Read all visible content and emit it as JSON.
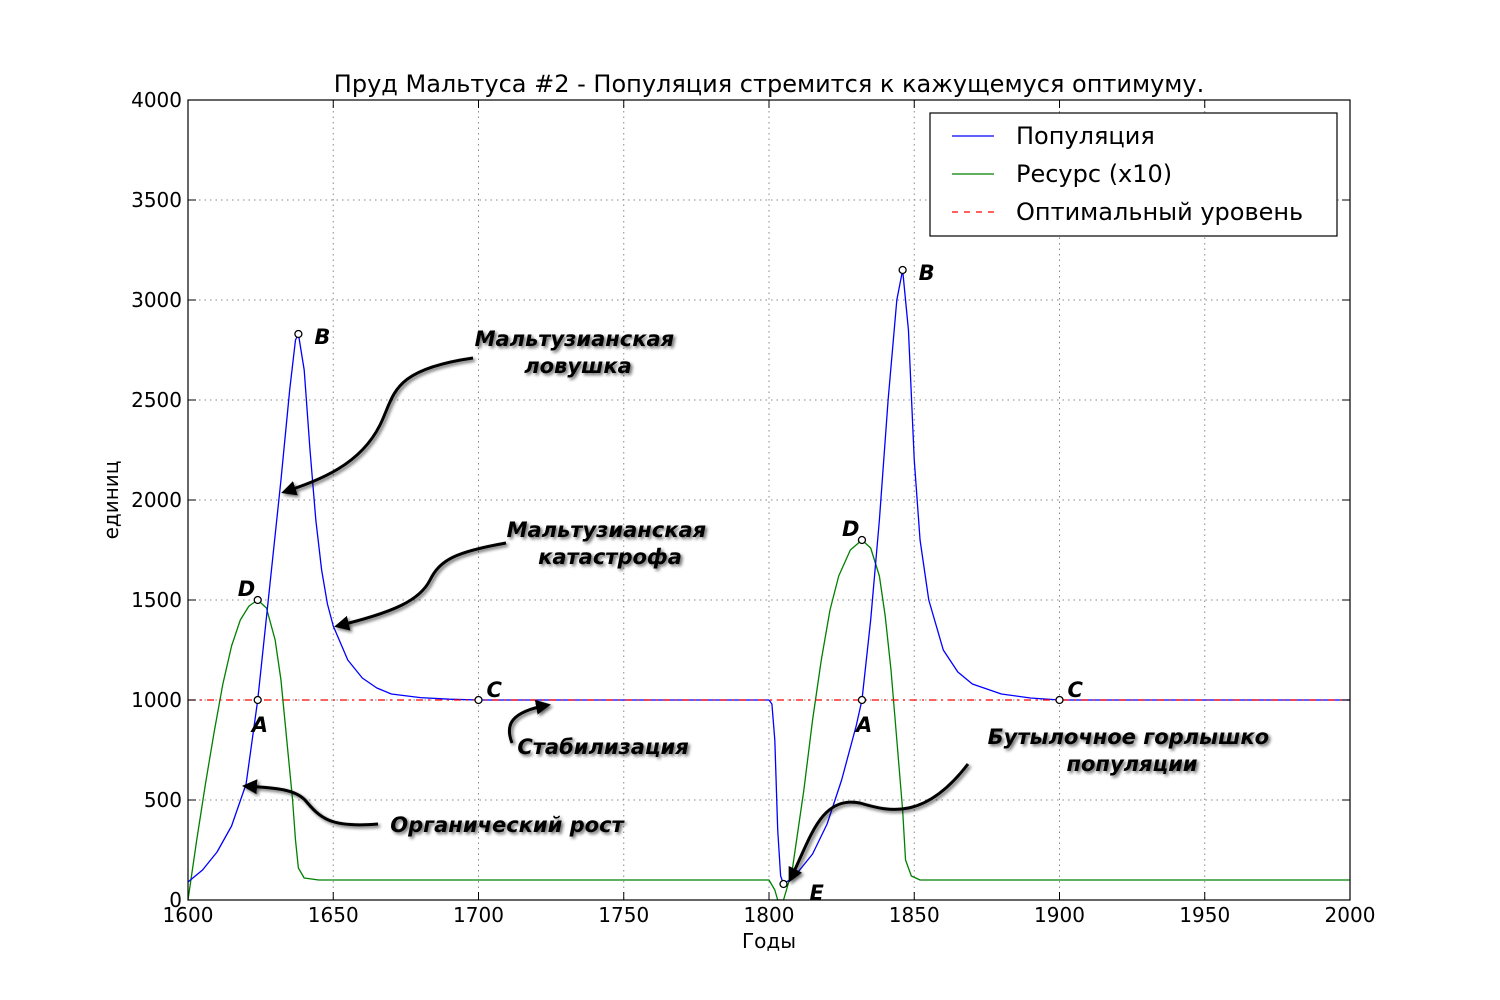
{
  "chart_data": {
    "type": "line",
    "title": "Пруд Мальтуса #2 - Популяция стремится к кажущемуся оптимуму.",
    "xlabel": "Годы",
    "ylabel": "единиц",
    "xlim": [
      1600,
      2000
    ],
    "ylim": [
      0,
      4000
    ],
    "xticks": [
      "1600",
      "1650",
      "1700",
      "1750",
      "1800",
      "1850",
      "1900",
      "1950",
      "2000"
    ],
    "yticks": [
      "0",
      "500",
      "1000",
      "1500",
      "2000",
      "2500",
      "3000",
      "3500",
      "4000"
    ],
    "grid": true,
    "legend_position": "top-right",
    "series": [
      {
        "name": "Популяция",
        "color": "#0000ff",
        "points": [
          [
            1600,
            90
          ],
          [
            1605,
            150
          ],
          [
            1610,
            240
          ],
          [
            1615,
            370
          ],
          [
            1620,
            580
          ],
          [
            1624,
            1000
          ],
          [
            1628,
            1550
          ],
          [
            1632,
            2100
          ],
          [
            1635,
            2550
          ],
          [
            1637,
            2800
          ],
          [
            1638,
            2830
          ],
          [
            1640,
            2650
          ],
          [
            1642,
            2250
          ],
          [
            1644,
            1900
          ],
          [
            1646,
            1650
          ],
          [
            1648,
            1480
          ],
          [
            1650,
            1370
          ],
          [
            1655,
            1200
          ],
          [
            1660,
            1110
          ],
          [
            1665,
            1060
          ],
          [
            1670,
            1030
          ],
          [
            1680,
            1012
          ],
          [
            1690,
            1004
          ],
          [
            1700,
            1000
          ],
          [
            1750,
            1000
          ],
          [
            1800,
            1000
          ],
          [
            1801,
            980
          ],
          [
            1802,
            800
          ],
          [
            1803,
            350
          ],
          [
            1804,
            120
          ],
          [
            1805,
            80
          ],
          [
            1807,
            100
          ],
          [
            1810,
            140
          ],
          [
            1815,
            230
          ],
          [
            1820,
            380
          ],
          [
            1825,
            600
          ],
          [
            1830,
            870
          ],
          [
            1832,
            1000
          ],
          [
            1835,
            1400
          ],
          [
            1838,
            1900
          ],
          [
            1841,
            2500
          ],
          [
            1844,
            3000
          ],
          [
            1846,
            3150
          ],
          [
            1848,
            2850
          ],
          [
            1850,
            2200
          ],
          [
            1852,
            1800
          ],
          [
            1855,
            1500
          ],
          [
            1860,
            1250
          ],
          [
            1865,
            1140
          ],
          [
            1870,
            1080
          ],
          [
            1880,
            1030
          ],
          [
            1890,
            1010
          ],
          [
            1900,
            1000
          ],
          [
            2000,
            1000
          ]
        ]
      },
      {
        "name": "Ресурс (x10)",
        "color": "#008000",
        "points": [
          [
            1600,
            0
          ],
          [
            1603,
            300
          ],
          [
            1606,
            580
          ],
          [
            1609,
            840
          ],
          [
            1612,
            1080
          ],
          [
            1615,
            1270
          ],
          [
            1618,
            1400
          ],
          [
            1621,
            1470
          ],
          [
            1624,
            1500
          ],
          [
            1627,
            1460
          ],
          [
            1630,
            1300
          ],
          [
            1632,
            1100
          ],
          [
            1634,
            800
          ],
          [
            1636,
            500
          ],
          [
            1637,
            300
          ],
          [
            1638,
            160
          ],
          [
            1640,
            110
          ],
          [
            1645,
            100
          ],
          [
            1700,
            100
          ],
          [
            1750,
            100
          ],
          [
            1800,
            100
          ],
          [
            1802,
            50
          ],
          [
            1803,
            0
          ],
          [
            1805,
            0
          ],
          [
            1808,
            150
          ],
          [
            1812,
            550
          ],
          [
            1815,
            900
          ],
          [
            1818,
            1200
          ],
          [
            1821,
            1450
          ],
          [
            1824,
            1620
          ],
          [
            1828,
            1750
          ],
          [
            1832,
            1800
          ],
          [
            1835,
            1760
          ],
          [
            1838,
            1620
          ],
          [
            1840,
            1420
          ],
          [
            1842,
            1150
          ],
          [
            1844,
            800
          ],
          [
            1846,
            450
          ],
          [
            1847,
            200
          ],
          [
            1849,
            120
          ],
          [
            1852,
            100
          ],
          [
            1900,
            100
          ],
          [
            2000,
            100
          ]
        ]
      },
      {
        "name": "Оптимальный уровень",
        "color": "#ff0000",
        "dashed": true,
        "points": [
          [
            1600,
            1000
          ],
          [
            2000,
            1000
          ]
        ]
      }
    ],
    "point_labels": [
      {
        "label": "A",
        "x": 1624,
        "y": 1000
      },
      {
        "label": "B",
        "x": 1638,
        "y": 2830
      },
      {
        "label": "C",
        "x": 1700,
        "y": 1000
      },
      {
        "label": "D",
        "x": 1624,
        "y": 1500
      },
      {
        "label": "A",
        "x": 1832,
        "y": 1000
      },
      {
        "label": "B",
        "x": 1846,
        "y": 3150
      },
      {
        "label": "C",
        "x": 1900,
        "y": 1000
      },
      {
        "label": "D",
        "x": 1832,
        "y": 1800
      },
      {
        "label": "E",
        "x": 1805,
        "y": 80
      }
    ],
    "annotations": [
      {
        "lines": [
          "Мальтузианская",
          "ловушка"
        ]
      },
      {
        "lines": [
          "Мальтузианская",
          "катастрофа"
        ]
      },
      {
        "lines": [
          "Стабилизация"
        ]
      },
      {
        "lines": [
          "Органический рост"
        ]
      },
      {
        "lines": [
          "Бутылочное горлышко",
          "популяции"
        ]
      }
    ]
  }
}
